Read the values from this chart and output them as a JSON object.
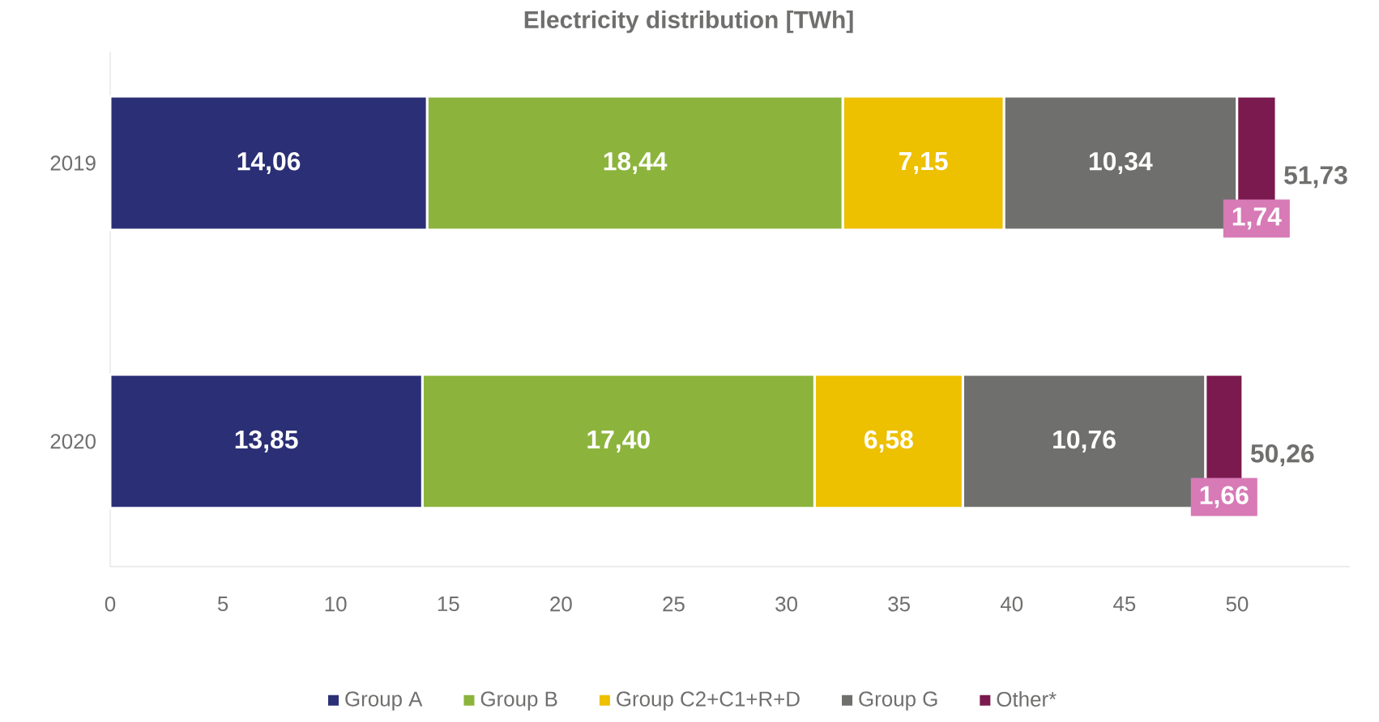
{
  "chart_data": {
    "type": "bar",
    "orientation": "horizontal",
    "stacked": true,
    "title": "Electricity distribution [TWh]",
    "categories": [
      "2019",
      "2020"
    ],
    "series": [
      {
        "name": "Group A",
        "color": "#2b2f75",
        "values": [
          14.06,
          13.85
        ],
        "value_labels": [
          "14,06",
          "13,85"
        ]
      },
      {
        "name": "Group B",
        "color": "#8cb43c",
        "values": [
          18.44,
          17.4
        ],
        "value_labels": [
          "18,44",
          "17,40"
        ]
      },
      {
        "name": "Group C2+C1+R+D",
        "color": "#edc000",
        "values": [
          7.15,
          6.58
        ],
        "value_labels": [
          "7,15",
          "6,58"
        ]
      },
      {
        "name": "Group G",
        "color": "#6f6f6e",
        "values": [
          10.34,
          10.76
        ],
        "value_labels": [
          "10,34",
          "10,76"
        ]
      },
      {
        "name": "Other*",
        "color": "#7a1a4e",
        "values": [
          1.74,
          1.66
        ],
        "value_labels": [
          "1,74",
          "1,66"
        ]
      }
    ],
    "totals": [
      "51,73",
      "50,26"
    ],
    "xlim": [
      0,
      55
    ],
    "xticks": [
      0,
      5,
      10,
      15,
      20,
      25,
      30,
      35,
      40,
      45,
      50
    ],
    "legend": "bottom"
  }
}
